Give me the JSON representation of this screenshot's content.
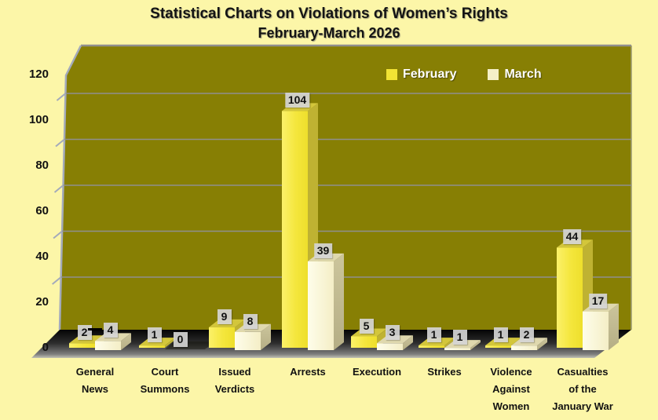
{
  "title": {
    "line1": "Statistical Charts on Violations of Women’s Rights",
    "line2": "February-March 2026"
  },
  "legend": {
    "items": [
      {
        "label": "February",
        "color": "#F2E334"
      },
      {
        "label": "March",
        "color": "#F5F0C8"
      }
    ]
  },
  "chart_data": {
    "type": "bar",
    "title": "Statistical Charts on Violations of Women’s Rights February-March 2026",
    "categories": [
      "General News",
      "Court Summons",
      "Issued Verdicts",
      "Arrests",
      "Execution",
      "Strikes",
      "Violence Against Women",
      "Casualties of the January War"
    ],
    "category_lines": [
      [
        "General",
        "News"
      ],
      [
        "Court",
        "Summons"
      ],
      [
        "Issued",
        "Verdicts"
      ],
      [
        "Arrests"
      ],
      [
        "Execution"
      ],
      [
        "Strikes"
      ],
      [
        "Violence",
        "Against",
        "Women"
      ],
      [
        "Casualties",
        "of the",
        "January War"
      ]
    ],
    "series": [
      {
        "name": "February",
        "values": [
          2,
          1,
          9,
          104,
          5,
          1,
          1,
          44
        ]
      },
      {
        "name": "March",
        "values": [
          4,
          0,
          8,
          39,
          3,
          1,
          2,
          17
        ]
      }
    ],
    "xlabel": "",
    "ylabel": "",
    "ylim": [
      0,
      120
    ],
    "yticks": [
      0,
      20,
      40,
      60,
      80,
      100,
      120
    ],
    "grid": true,
    "legend_position": "top-center-inside",
    "style": "3d-bars"
  },
  "colors": {
    "background": "#FCF6A8",
    "wall": "#877F04",
    "gridline": "#8F8F8F",
    "wall_edge": "#A3AABB",
    "feb_front_light": "#FBF169",
    "feb_front": "#F2E334",
    "feb_top": "#D3C63B",
    "feb_side": "#BFB232",
    "mar_front_light": "#FEFDEA",
    "mar_front": "#F5EFC9",
    "mar_top": "#DFD8AE",
    "mar_side": "#C4BD94",
    "label_box": "#D5D5D5",
    "title_text": "#141414",
    "legend_text": "#FFFFFF"
  }
}
